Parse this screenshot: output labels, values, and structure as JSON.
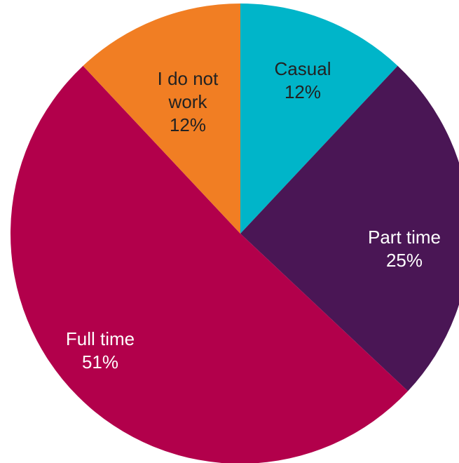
{
  "chart_data": {
    "type": "pie",
    "categories": [
      "Casual",
      "Part time",
      "Full time",
      "I do not work"
    ],
    "values": [
      12,
      25,
      51,
      12
    ],
    "value_labels": [
      "12%",
      "25%",
      "51%",
      "12%"
    ],
    "colors": [
      "#00b5c9",
      "#4a1655",
      "#b2004b",
      "#f17e23"
    ]
  }
}
